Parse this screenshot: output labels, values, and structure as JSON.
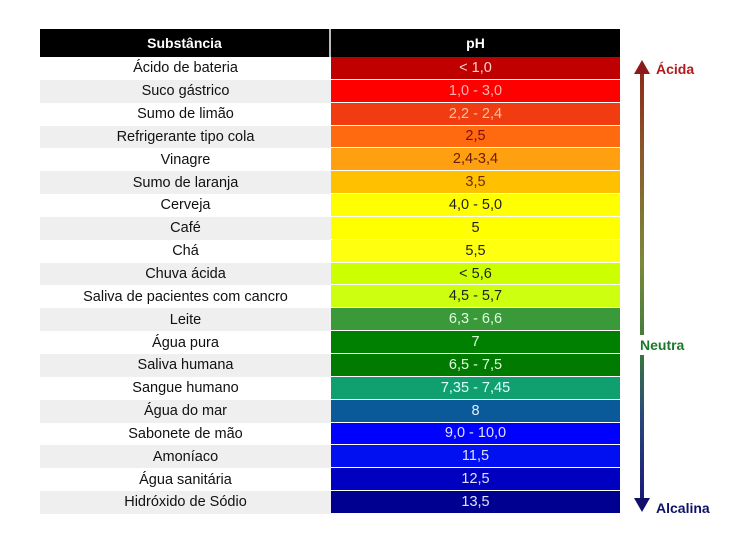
{
  "table": {
    "headers": {
      "substance": "Substância",
      "ph": "pH"
    },
    "rows": [
      {
        "name": "Ácido de bateria",
        "ph": "< 1,0",
        "bg": "#c00000",
        "fg": "#ffd0d0"
      },
      {
        "name": "Suco gástrico",
        "ph": "1,0 - 3,0",
        "bg": "#ff0000",
        "fg": "#ffb0b0"
      },
      {
        "name": "Sumo de limão",
        "ph": "2,2 - 2,4",
        "bg": "#f03c10",
        "fg": "#ffc0a0"
      },
      {
        "name": "Refrigerante tipo cola",
        "ph": "2,5",
        "bg": "#ff6a10",
        "fg": "#7a1010"
      },
      {
        "name": "Vinagre",
        "ph": "2,4-3,4",
        "bg": "#ffa010",
        "fg": "#6a1a10"
      },
      {
        "name": "Sumo de laranja",
        "ph": "3,5",
        "bg": "#ffc000",
        "fg": "#6a2a10"
      },
      {
        "name": "Cerveja",
        "ph": "4,0 - 5,0",
        "bg": "#ffff00",
        "fg": "#222222"
      },
      {
        "name": "Café",
        "ph": "5",
        "bg": "#ffff00",
        "fg": "#222222"
      },
      {
        "name": "Chá",
        "ph": "5,5",
        "bg": "#ffff10",
        "fg": "#222222"
      },
      {
        "name": "Chuva ácida",
        "ph": "< 5,6",
        "bg": "#ccff00",
        "fg": "#222222"
      },
      {
        "name": "Saliva de pacientes com cancro",
        "ph": "4,5 - 5,7",
        "bg": "#ccff10",
        "fg": "#222222"
      },
      {
        "name": "Leite",
        "ph": "6,3 - 6,6",
        "bg": "#3a9a3a",
        "fg": "#e0ffe0"
      },
      {
        "name": "Água pura",
        "ph": "7",
        "bg": "#008000",
        "fg": "#e0ffe0"
      },
      {
        "name": "Saliva humana",
        "ph": "6,5 - 7,5",
        "bg": "#007a00",
        "fg": "#e0ffe0"
      },
      {
        "name": "Sangue humano",
        "ph": "7,35 - 7,45",
        "bg": "#10a070",
        "fg": "#e0ffff"
      },
      {
        "name": "Água do mar",
        "ph": "8",
        "bg": "#0a5a9a",
        "fg": "#e0f0ff"
      },
      {
        "name": "Sabonete de mão",
        "ph": "9,0 - 10,0",
        "bg": "#0000ff",
        "fg": "#e0e0ff"
      },
      {
        "name": "Amoníaco",
        "ph": "11,5",
        "bg": "#0010f0",
        "fg": "#e0e0ff"
      },
      {
        "name": "Água sanitária",
        "ph": "12,5",
        "bg": "#0000c0",
        "fg": "#e0e0ff"
      },
      {
        "name": "Hidróxido de Sódio",
        "ph": "13,5",
        "bg": "#000090",
        "fg": "#e0e0ff"
      }
    ]
  },
  "scale": {
    "top_label": "Ácida",
    "middle_label": "Neutra",
    "bottom_label": "Alcalina"
  },
  "chart_data": {
    "type": "table",
    "title": "",
    "columns": [
      "Substância",
      "pH"
    ],
    "rows": [
      [
        "Ácido de bateria",
        "< 1,0"
      ],
      [
        "Suco gástrico",
        "1,0 - 3,0"
      ],
      [
        "Sumo de limão",
        "2,2 - 2,4"
      ],
      [
        "Refrigerante tipo cola",
        "2,5"
      ],
      [
        "Vinagre",
        "2,4-3,4"
      ],
      [
        "Sumo de laranja",
        "3,5"
      ],
      [
        "Cerveja",
        "4,0 - 5,0"
      ],
      [
        "Café",
        "5"
      ],
      [
        "Chá",
        "5,5"
      ],
      [
        "Chuva ácida",
        "< 5,6"
      ],
      [
        "Saliva de pacientes com cancro",
        "4,5 - 5,7"
      ],
      [
        "Leite",
        "6,3 - 6,6"
      ],
      [
        "Água pura",
        "7"
      ],
      [
        "Saliva humana",
        "6,5 - 7,5"
      ],
      [
        "Sangue humano",
        "7,35 - 7,45"
      ],
      [
        "Água do mar",
        "8"
      ],
      [
        "Sabonete de mão",
        "9,0 - 10,0"
      ],
      [
        "Amoníaco",
        "11,5"
      ],
      [
        "Água sanitária",
        "12,5"
      ],
      [
        "Hidróxido de Sódio",
        "13,5"
      ]
    ],
    "scale_annotations": {
      "top": "Ácida",
      "middle": "Neutra",
      "bottom": "Alcalina"
    }
  }
}
